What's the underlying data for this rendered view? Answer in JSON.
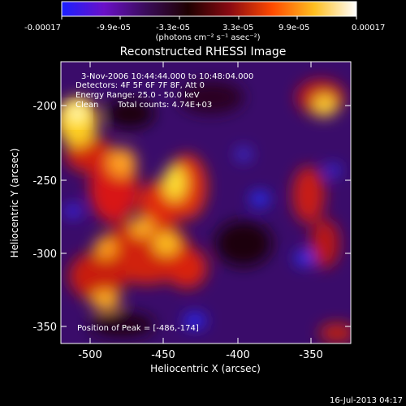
{
  "colorbar": {
    "ticks": [
      "-0.00017",
      "-9.9e-05",
      "-3.3e-05",
      "3.3e-05",
      "9.9e-05",
      "0.00017"
    ],
    "unit_label": "(photons cm⁻² s⁻¹ asec⁻²)",
    "stops": [
      "#1a20ff",
      "#6a10c8",
      "#3a0c5a",
      "#1e0000",
      "#8a0a12",
      "#ff4a00",
      "#ffbf20",
      "#ffffff"
    ]
  },
  "image": {
    "title": "Reconstructed RHESSI Image",
    "time_range": "3-Nov-2006 10:44:44.000 to 10:48:04.000",
    "detectors": "Detectors: 4F 5F 6F 7F 8F, Att 0",
    "energy_range": "Energy Range: 25.0 - 50.0 keV",
    "method": "Clean",
    "total_counts": "Total counts: 4.74E+03",
    "peak_position": "Position of Peak = [-486,-174]",
    "xlabel": "Heliocentric X (arcsec)",
    "ylabel": "Heliocentric Y (arcsec)",
    "x_ticks": [
      "-500",
      "-450",
      "-400",
      "-350"
    ],
    "y_ticks": [
      "-200",
      "-250",
      "-300",
      "-350"
    ]
  },
  "footer": {
    "timestamp": "16-Jul-2013 04:17"
  }
}
